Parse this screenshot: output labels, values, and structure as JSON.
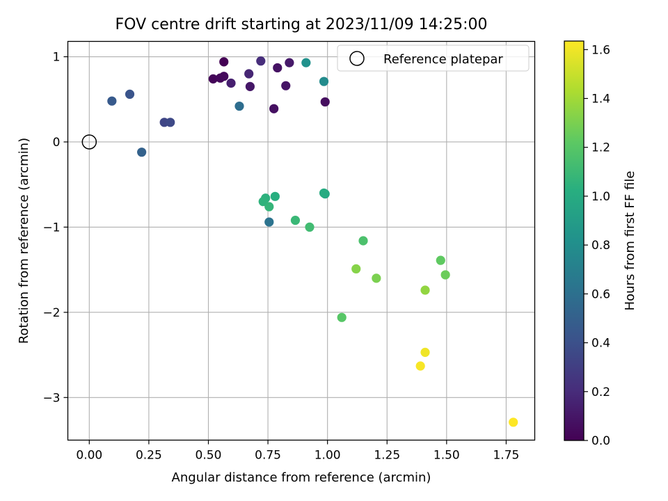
{
  "chart_data": {
    "type": "scatter",
    "title": "FOV centre drift starting at 2023/11/09 14:25:00",
    "xlabel": "Angular distance from reference (arcmin)",
    "ylabel": "Rotation from reference (arcmin)",
    "xlim": [
      -0.09,
      1.87
    ],
    "ylim": [
      -3.5,
      1.18
    ],
    "xticks": [
      0.0,
      0.25,
      0.5,
      0.75,
      1.0,
      1.25,
      1.5,
      1.75
    ],
    "xtick_labels": [
      "0.00",
      "0.25",
      "0.50",
      "0.75",
      "1.00",
      "1.25",
      "1.50",
      "1.75"
    ],
    "yticks": [
      1,
      0,
      -1,
      -2,
      -3
    ],
    "ytick_labels": [
      "1",
      "0",
      "−1",
      "−2",
      "−3"
    ],
    "grid": true,
    "legend": {
      "placement": "upper right",
      "entries": [
        "Reference platepar"
      ]
    },
    "reference_point": {
      "x": 0.0,
      "y": 0.0,
      "label": "Reference platepar"
    },
    "colorbar": {
      "label": "Hours from first FF file",
      "colormap": "viridis",
      "range": [
        0.0,
        1.635
      ],
      "ticks": [
        0.0,
        0.2,
        0.4,
        0.6,
        0.8,
        1.0,
        1.2,
        1.4,
        1.6
      ],
      "tick_labels": [
        "0.0",
        "0.2",
        "0.4",
        "0.6",
        "0.8",
        "1.0",
        "1.2",
        "1.4",
        "1.6"
      ]
    },
    "points": [
      {
        "x": 0.565,
        "y": 0.94,
        "c": 0.0
      },
      {
        "x": 0.52,
        "y": 0.74,
        "c": 0.02
      },
      {
        "x": 0.55,
        "y": 0.75,
        "c": 0.03
      },
      {
        "x": 0.565,
        "y": 0.77,
        "c": 0.04
      },
      {
        "x": 0.99,
        "y": 0.47,
        "c": 0.06
      },
      {
        "x": 0.775,
        "y": 0.39,
        "c": 0.07
      },
      {
        "x": 0.79,
        "y": 0.87,
        "c": 0.08
      },
      {
        "x": 0.825,
        "y": 0.66,
        "c": 0.09
      },
      {
        "x": 0.675,
        "y": 0.65,
        "c": 0.1
      },
      {
        "x": 0.84,
        "y": 0.93,
        "c": 0.11
      },
      {
        "x": 0.595,
        "y": 0.69,
        "c": 0.14
      },
      {
        "x": 0.67,
        "y": 0.8,
        "c": 0.17
      },
      {
        "x": 0.72,
        "y": 0.95,
        "c": 0.21
      },
      {
        "x": 0.315,
        "y": 0.23,
        "c": 0.34
      },
      {
        "x": 0.34,
        "y": 0.23,
        "c": 0.36
      },
      {
        "x": 0.17,
        "y": 0.56,
        "c": 0.42
      },
      {
        "x": 0.095,
        "y": 0.48,
        "c": 0.46
      },
      {
        "x": 0.22,
        "y": -0.12,
        "c": 0.51
      },
      {
        "x": 0.63,
        "y": 0.42,
        "c": 0.58
      },
      {
        "x": 0.755,
        "y": -0.94,
        "c": 0.62
      },
      {
        "x": 0.985,
        "y": 0.71,
        "c": 0.78
      },
      {
        "x": 0.91,
        "y": 0.93,
        "c": 0.82
      },
      {
        "x": 0.99,
        "y": -0.61,
        "c": 0.97
      },
      {
        "x": 0.985,
        "y": -0.6,
        "c": 1.0
      },
      {
        "x": 0.78,
        "y": -0.64,
        "c": 1.02
      },
      {
        "x": 0.74,
        "y": -0.66,
        "c": 1.04
      },
      {
        "x": 0.73,
        "y": -0.7,
        "c": 1.05
      },
      {
        "x": 0.755,
        "y": -0.76,
        "c": 1.07
      },
      {
        "x": 0.865,
        "y": -0.92,
        "c": 1.09
      },
      {
        "x": 0.925,
        "y": -1.0,
        "c": 1.12
      },
      {
        "x": 1.15,
        "y": -1.16,
        "c": 1.16
      },
      {
        "x": 1.06,
        "y": -2.06,
        "c": 1.2
      },
      {
        "x": 1.475,
        "y": -1.39,
        "c": 1.23
      },
      {
        "x": 1.495,
        "y": -1.56,
        "c": 1.26
      },
      {
        "x": 1.205,
        "y": -1.6,
        "c": 1.3
      },
      {
        "x": 1.12,
        "y": -1.49,
        "c": 1.33
      },
      {
        "x": 1.41,
        "y": -1.74,
        "c": 1.36
      },
      {
        "x": 1.41,
        "y": -2.47,
        "c": 1.6
      },
      {
        "x": 1.39,
        "y": -2.63,
        "c": 1.62
      },
      {
        "x": 1.78,
        "y": -3.29,
        "c": 1.635
      }
    ]
  }
}
